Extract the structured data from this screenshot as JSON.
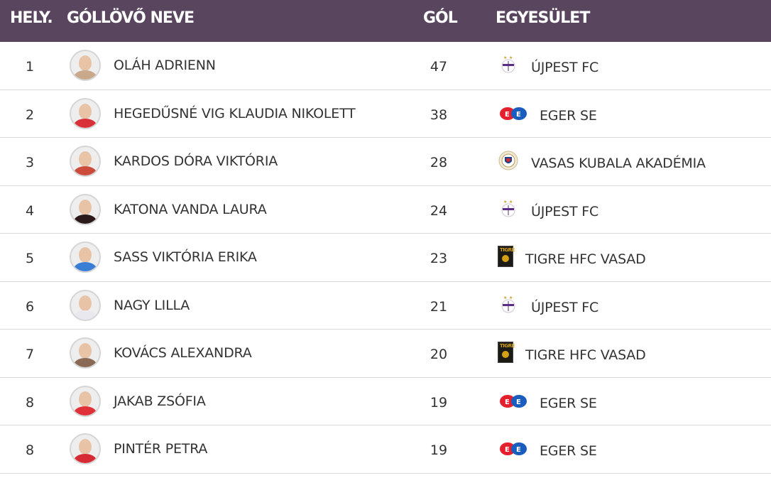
{
  "headers": {
    "rank": "HELY.",
    "name": "GÓLLÖVŐ NEVE",
    "goals": "GÓL",
    "club": "EGYESÜLET"
  },
  "colors": {
    "header_bg": "#5a455e",
    "header_text": "#ffffff",
    "row_border": "#d9d9d9",
    "eger_red": "#e4202e",
    "eger_blue": "#1a5dbf",
    "ujpest_purple": "#5a2d82"
  },
  "rows": [
    {
      "rank": "1",
      "name": "OLÁH ADRIENN",
      "goals": "47",
      "club": "ÚJPEST FC",
      "logo": "ujpest-logo-icon",
      "shirt": "#c9a88c"
    },
    {
      "rank": "2",
      "name": "HEGEDŰSNÉ VIG KLAUDIA NIKOLETT",
      "goals": "38",
      "club": "EGER SE",
      "logo": "eger-logo-icon",
      "shirt": "#d8313a"
    },
    {
      "rank": "3",
      "name": "KARDOS DÓRA VIKTÓRIA",
      "goals": "28",
      "club": "VASAS KUBALA AKADÉMIA",
      "logo": "vasas-logo-icon",
      "shirt": "#cc4b3a"
    },
    {
      "rank": "4",
      "name": "KATONA VANDA LAURA",
      "goals": "24",
      "club": "ÚJPEST FC",
      "logo": "ujpest-logo-icon",
      "shirt": "#2a1a1a"
    },
    {
      "rank": "5",
      "name": "SASS VIKTÓRIA ERIKA",
      "goals": "23",
      "club": "TIGRE HFC VASAD",
      "logo": "tigre-logo-icon",
      "shirt": "#3b7ed6"
    },
    {
      "rank": "6",
      "name": "NAGY LILLA",
      "goals": "21",
      "club": "ÚJPEST FC",
      "logo": "ujpest-logo-icon",
      "shirt": "#e8e8ee"
    },
    {
      "rank": "7",
      "name": "KOVÁCS ALEXANDRA",
      "goals": "20",
      "club": "TIGRE HFC VASAD",
      "logo": "tigre-logo-icon",
      "shirt": "#8a6a55"
    },
    {
      "rank": "8",
      "name": "JAKAB ZSÓFIA",
      "goals": "19",
      "club": "EGER SE",
      "logo": "eger-logo-icon",
      "shirt": "#e0303a"
    },
    {
      "rank": "8",
      "name": "PINTÉR PETRA",
      "goals": "19",
      "club": "EGER SE",
      "logo": "eger-logo-icon",
      "shirt": "#d62a34"
    }
  ]
}
